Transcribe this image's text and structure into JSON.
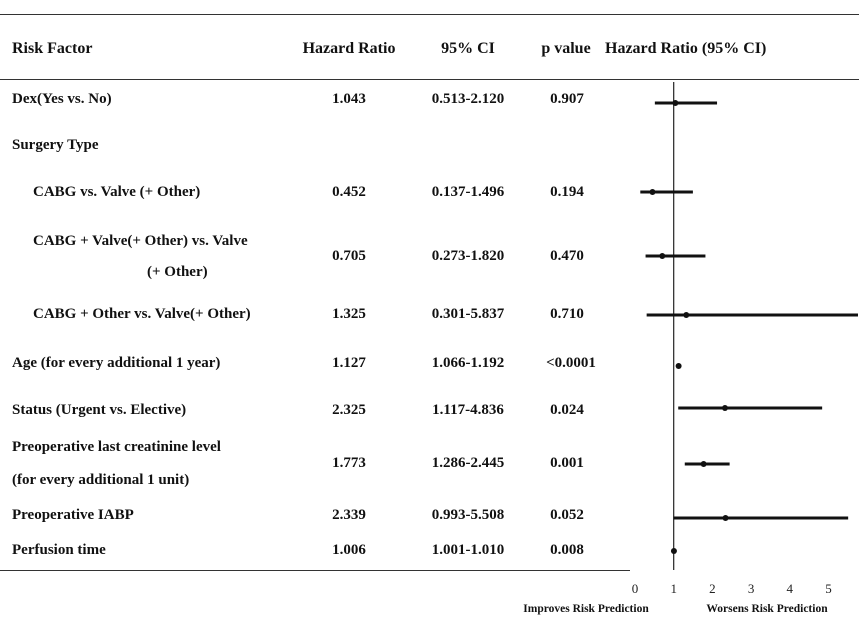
{
  "headers": {
    "risk_factor": "Risk Factor",
    "hazard_ratio": "Hazard Ratio",
    "ci": "95% CI",
    "p_value": "p value",
    "plot": "Hazard Ratio (95% CI)"
  },
  "rows": [
    {
      "label": "Dex(Yes vs. No)",
      "hr": "1.043",
      "ci": "0.513-2.120",
      "p": "0.907"
    },
    {
      "label": "Surgery Type",
      "hr": "",
      "ci": "",
      "p": ""
    },
    {
      "label": "CABG vs. Valve (+ Other)",
      "hr": "0.452",
      "ci": "0.137-1.496",
      "p": "0.194"
    },
    {
      "label": "CABG + Valve(+ Other) vs. Valve",
      "label2": "(+ Other)",
      "hr": "0.705",
      "ci": "0.273-1.820",
      "p": "0.470"
    },
    {
      "label": "CABG + Other vs. Valve(+ Other)",
      "hr": "1.325",
      "ci": "0.301-5.837",
      "p": "0.710"
    },
    {
      "label": "Age (for every additional 1 year)",
      "hr": "1.127",
      "ci": "1.066-1.192",
      "p": "<0.0001"
    },
    {
      "label": "Status (Urgent vs. Elective)",
      "hr": "2.325",
      "ci": "1.117-4.836",
      "p": "0.024"
    },
    {
      "label": "Preoperative  last  creatinine level",
      "label2": "(for every additional 1 unit)",
      "hr": "1.773",
      "ci": "1.286-2.445",
      "p": "0.001"
    },
    {
      "label": "Preoperative IABP",
      "hr": "2.339",
      "ci": "0.993-5.508",
      "p": "0.052"
    },
    {
      "label": "Perfusion  time",
      "hr": "1.006",
      "ci": "1.001-1.010",
      "p": "0.008"
    }
  ],
  "footer": {
    "left": "Improves Risk Prediction",
    "right": "Worsens Risk Prediction"
  },
  "chart_data": {
    "type": "forest",
    "title": "Hazard Ratio (95% CI)",
    "reference_line": 1,
    "xlim": [
      0,
      5.6
    ],
    "xticks": [
      0,
      1,
      2,
      3,
      4,
      5
    ],
    "points": [
      {
        "hr": 1.043,
        "lo": 0.513,
        "hi": 2.12
      },
      {
        "hr": 0.452,
        "lo": 0.137,
        "hi": 1.496
      },
      {
        "hr": 0.705,
        "lo": 0.273,
        "hi": 1.82
      },
      {
        "hr": 1.325,
        "lo": 0.301,
        "hi": 5.837
      },
      {
        "hr": 1.127,
        "lo": 1.066,
        "hi": 1.192
      },
      {
        "hr": 2.325,
        "lo": 1.117,
        "hi": 4.836
      },
      {
        "hr": 1.773,
        "lo": 1.286,
        "hi": 2.445
      },
      {
        "hr": 2.339,
        "lo": 0.993,
        "hi": 5.508
      },
      {
        "hr": 1.006,
        "lo": 1.001,
        "hi": 1.01
      }
    ]
  }
}
